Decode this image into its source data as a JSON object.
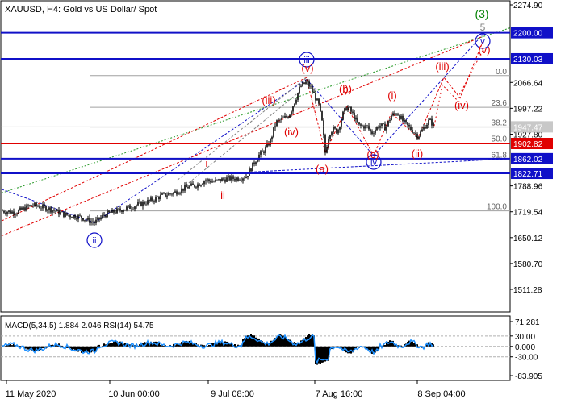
{
  "title": "XAUUSD, H4:  Gold vs US Dollar/ Spot",
  "price_axis": {
    "labels": [
      "2274.90",
      "2066.64",
      "1997.22",
      "1927.80",
      "1788.96",
      "1719.54",
      "1650.12",
      "1580.70",
      "1511.28"
    ]
  },
  "price_tags": [
    {
      "value": "2200.00",
      "color": "#1010c8"
    },
    {
      "value": "2130.03",
      "color": "#1010c8"
    },
    {
      "value": "1947.47",
      "color": "#c8c8c8"
    },
    {
      "value": "1902.82",
      "color": "#e00000"
    },
    {
      "value": "1862.02",
      "color": "#1010c8"
    },
    {
      "value": "1822.71",
      "color": "#1010c8"
    }
  ],
  "fib_levels": [
    {
      "label": "0.0",
      "price": 2085
    },
    {
      "label": "23.6",
      "price": 2000
    },
    {
      "label": "38.2",
      "price": 1947
    },
    {
      "label": "50.0",
      "price": 1904
    },
    {
      "label": "61.8",
      "price": 1861
    },
    {
      "label": "100.0",
      "price": 1722
    }
  ],
  "waves": {
    "major": [
      "(3)",
      "5"
    ],
    "circled": [
      "v",
      "iii",
      "iv",
      "ii"
    ],
    "red": [
      "(v)",
      "(iii)",
      "(iv)",
      "(i)",
      "(ii)",
      "(b)",
      "(a)",
      "(c)",
      "(i)",
      "(ii)",
      "(iii)",
      "(iv)",
      "(v)",
      "i",
      "ii"
    ]
  },
  "macd": {
    "header": "MACD(5,34,5) 1.884 2.046 RSI(14) 54.75",
    "labels": [
      "71.281",
      "30.00",
      "0.000",
      "-30.00",
      "-83.905"
    ]
  },
  "time_axis": {
    "labels": [
      "11 May 2020",
      "10 Jun 00:00",
      "9 Jul 08:00",
      "7 Aug 16:00",
      "8 Sep 04:00"
    ]
  },
  "colors": {
    "candles": "#000000",
    "blue_levels": "#1010c8",
    "red_level": "#e00000",
    "waves_red": "#e00000",
    "waves_blue": "#1010c8",
    "major_wave": "#008000",
    "macd_hist": "#000000",
    "rsi_line": "#1e90ff"
  },
  "chart_data": {
    "type": "line",
    "symbol": "XAUUSD",
    "timeframe": "H4",
    "x": [
      "11 May 2020",
      "10 Jun 2020",
      "9 Jul 2020",
      "7 Aug 2020",
      "8 Sep 2020"
    ],
    "series": [
      {
        "name": "",
        "values": [
          1695,
          1728,
          1805,
          2068,
          1943
        ]
      }
    ],
    "ylim": [
      1480,
      2290
    ],
    "horizontal_levels": [
      2200.0,
      2130.03,
      1902.82,
      1862.02,
      1822.71
    ],
    "current_price": 1947.47,
    "indicator": {
      "ylim": [
        -83.905,
        71.281
      ],
      "levels": [
        30.0,
        0.0,
        -30.0
      ]
    }
  }
}
